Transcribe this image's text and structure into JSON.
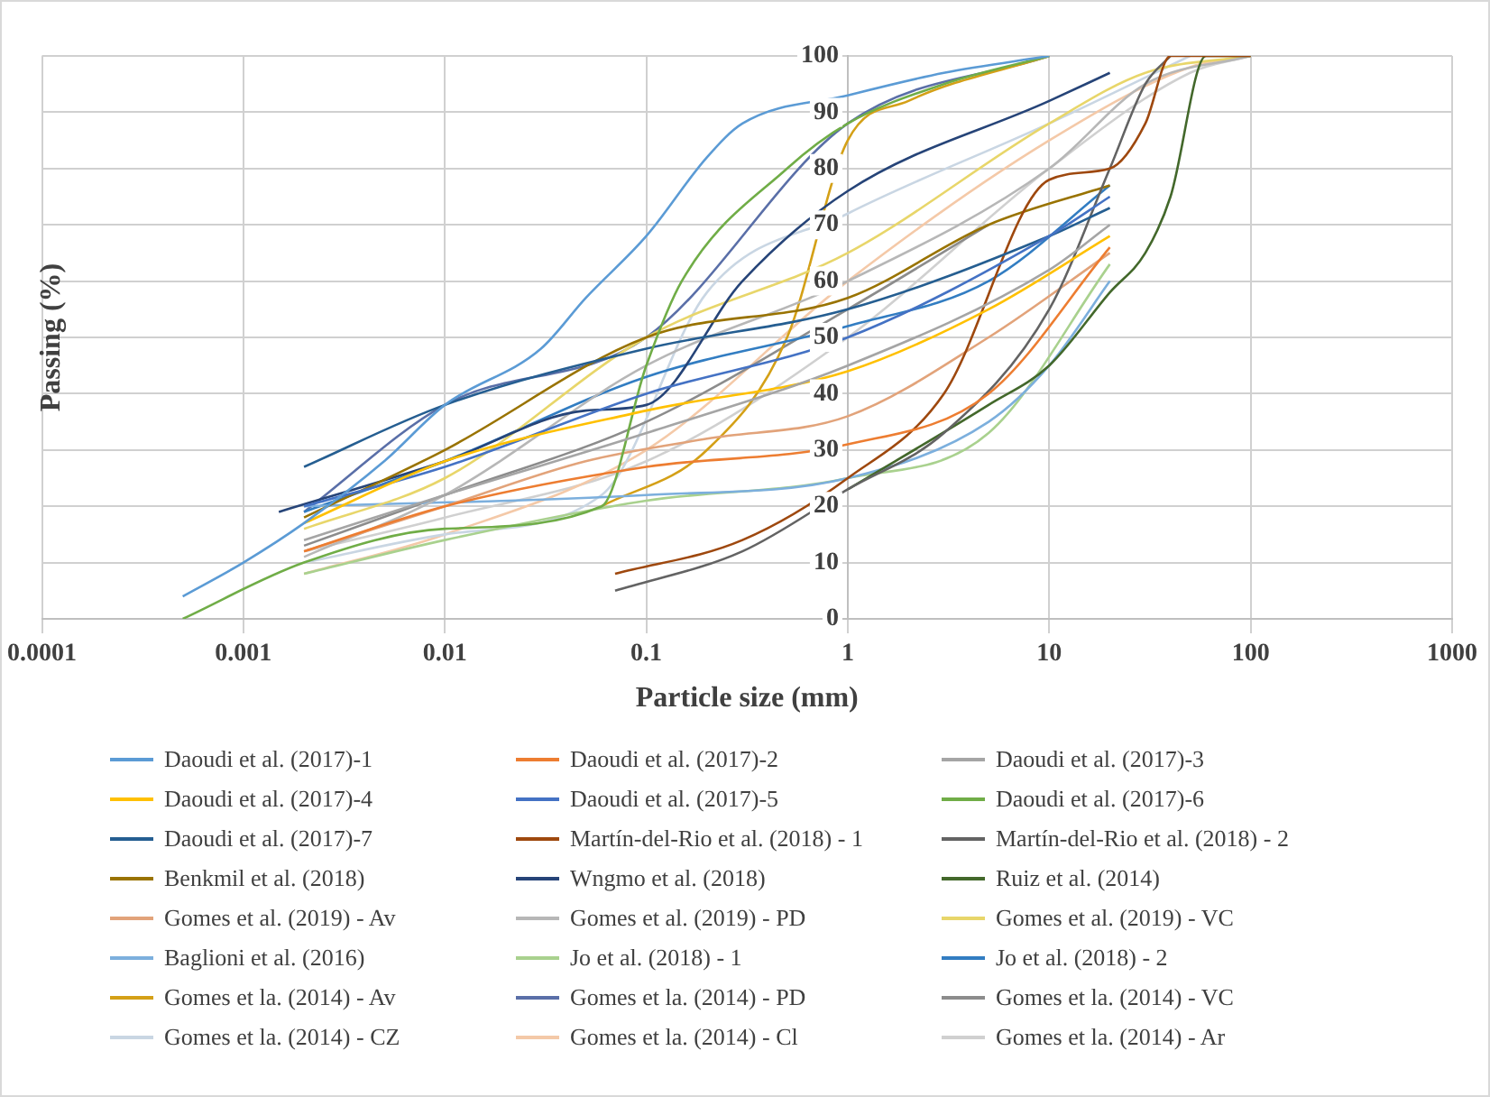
{
  "chart_data": {
    "type": "line",
    "xlabel": "Particle size (mm)",
    "ylabel": "Passing (%)",
    "log": "x",
    "xlim": [
      0.0001,
      1000
    ],
    "xticks": [
      0.0001,
      0.001,
      0.01,
      0.1,
      1,
      10,
      100,
      1000
    ],
    "ylim": [
      0,
      100
    ],
    "yticks": [
      0,
      10,
      20,
      30,
      40,
      50,
      60,
      70,
      80,
      90,
      100
    ],
    "grid": true,
    "legend": "bottom",
    "marker": "none",
    "line_style": "solid",
    "series": [
      {
        "name": "Daoudi et al. (2017)-1",
        "color": "#5b9bd5",
        "x": [
          0.0005,
          0.001,
          0.002,
          0.005,
          0.01,
          0.03,
          0.05,
          0.1,
          0.2,
          0.3,
          1,
          3,
          10
        ],
        "values": [
          4,
          10,
          17,
          28,
          38,
          48,
          57,
          68,
          82,
          88,
          93,
          97,
          100
        ]
      },
      {
        "name": "Daoudi et al. (2017)-2",
        "color": "#ed7d31",
        "x": [
          0.002,
          0.01,
          0.1,
          1,
          5,
          20
        ],
        "values": [
          12,
          20,
          27,
          31,
          40,
          66
        ]
      },
      {
        "name": "Daoudi et al. (2017)-3",
        "color": "#a5a5a5",
        "x": [
          0.002,
          0.01,
          0.1,
          1,
          10,
          20
        ],
        "values": [
          14,
          22,
          33,
          45,
          62,
          70
        ]
      },
      {
        "name": "Daoudi et al. (2017)-4",
        "color": "#ffc000",
        "x": [
          0.002,
          0.01,
          0.1,
          1,
          5,
          20
        ],
        "values": [
          17,
          28,
          37,
          44,
          55,
          68
        ]
      },
      {
        "name": "Daoudi et al. (2017)-5",
        "color": "#4472c4",
        "x": [
          0.002,
          0.01,
          0.1,
          1,
          10,
          20
        ],
        "values": [
          20,
          27,
          40,
          50,
          68,
          75
        ]
      },
      {
        "name": "Daoudi et al. (2017)-6",
        "color": "#70ad47",
        "x": [
          0.0005,
          0.002,
          0.01,
          0.06,
          0.1,
          0.15,
          0.5,
          1,
          3,
          10
        ],
        "values": [
          0,
          10,
          16,
          20,
          45,
          60,
          80,
          88,
          95,
          100
        ]
      },
      {
        "name": "Daoudi et al. (2017)-7",
        "color": "#255e91",
        "x": [
          0.002,
          0.01,
          0.1,
          1,
          10,
          20
        ],
        "values": [
          27,
          38,
          48,
          55,
          68,
          73
        ]
      },
      {
        "name": "Martín-del-Rio et al. (2018) - 1",
        "color": "#9e480e",
        "x": [
          0.07,
          0.3,
          1,
          3,
          10,
          20,
          30,
          40,
          100
        ],
        "values": [
          8,
          14,
          25,
          40,
          78,
          80,
          88,
          100,
          100
        ]
      },
      {
        "name": "Martín-del-Rio et al. (2018) - 2",
        "color": "#636363",
        "x": [
          0.07,
          0.3,
          1,
          3,
          10,
          20,
          30,
          40
        ],
        "values": [
          5,
          12,
          23,
          33,
          55,
          80,
          95,
          100
        ]
      },
      {
        "name": "Benkmil et al. (2018)",
        "color": "#997300",
        "x": [
          0.002,
          0.01,
          0.1,
          1,
          5,
          20
        ],
        "values": [
          18,
          30,
          50,
          57,
          70,
          77
        ]
      },
      {
        "name": "Wngmo et al.  (2018)",
        "color": "#264478",
        "x": [
          0.0015,
          0.01,
          0.05,
          0.1,
          0.3,
          1,
          10,
          20
        ],
        "values": [
          19,
          28,
          37,
          38,
          60,
          76,
          92,
          97
        ]
      },
      {
        "name": "Ruiz et al. (2014)",
        "color": "#43682b",
        "x": [
          1,
          5,
          10,
          20,
          30,
          40,
          60,
          100
        ],
        "values": [
          23,
          38,
          45,
          58,
          65,
          75,
          100,
          100
        ]
      },
      {
        "name": "Gomes et al. (2019) - Av",
        "color": "#e2a37a",
        "x": [
          0.002,
          0.01,
          0.05,
          0.2,
          1,
          5,
          20
        ],
        "values": [
          12,
          20,
          28,
          32,
          36,
          50,
          65
        ]
      },
      {
        "name": "Gomes et al. (2019) - PD",
        "color": "#b7b7b7",
        "x": [
          0.002,
          0.01,
          0.1,
          1,
          10,
          30,
          100
        ],
        "values": [
          11,
          22,
          45,
          60,
          80,
          95,
          100
        ]
      },
      {
        "name": "Gomes et al. (2019) - VC",
        "color": "#e8d66a",
        "x": [
          0.002,
          0.01,
          0.1,
          1,
          10,
          30,
          100
        ],
        "values": [
          16,
          25,
          50,
          65,
          88,
          97,
          100
        ]
      },
      {
        "name": "Baglioni et al. (2016)",
        "color": "#7cafdd",
        "x": [
          0.002,
          0.1,
          1,
          5,
          10,
          20
        ],
        "values": [
          20,
          22,
          25,
          35,
          45,
          60
        ]
      },
      {
        "name": "Jo et al. (2018) - 1",
        "color": "#a9d18e",
        "x": [
          0.002,
          0.01,
          0.1,
          1,
          5,
          20
        ],
        "values": [
          8,
          14,
          21,
          25,
          33,
          63
        ]
      },
      {
        "name": "Jo et al. (2018) - 2",
        "color": "#327dc2",
        "x": [
          0.002,
          0.01,
          0.1,
          1,
          5,
          20
        ],
        "values": [
          19,
          28,
          43,
          52,
          60,
          77
        ]
      },
      {
        "name": "Gomes et la. (2014) - Av",
        "color": "#d4a017",
        "x": [
          0.06,
          0.2,
          0.5,
          1,
          2,
          10
        ],
        "values": [
          20,
          30,
          50,
          85,
          92,
          100
        ]
      },
      {
        "name": "Gomes et la. (2014) - PD",
        "color": "#5a6fa8",
        "x": [
          0.002,
          0.01,
          0.1,
          1,
          10
        ],
        "values": [
          19,
          38,
          50,
          88,
          100
        ]
      },
      {
        "name": "Gomes et la. (2014) - VC",
        "color": "#8c8c8c",
        "x": [
          0.002,
          0.01,
          0.1,
          1,
          5
        ],
        "values": [
          13,
          22,
          35,
          55,
          70
        ]
      },
      {
        "name": "Gomes et la. (2014) - CZ",
        "color": "#c9d6e3",
        "x": [
          0.002,
          0.01,
          0.06,
          0.2,
          1,
          10,
          50
        ],
        "values": [
          10,
          15,
          22,
          58,
          72,
          88,
          100
        ]
      },
      {
        "name": "Gomes et la. (2014) - Cl",
        "color": "#f4c9a8",
        "x": [
          0.002,
          0.01,
          0.1,
          1,
          10,
          50,
          100
        ],
        "values": [
          8,
          15,
          30,
          60,
          85,
          98,
          100
        ]
      },
      {
        "name": "Gomes et la. (2014) - Ar",
        "color": "#d0d0d0",
        "x": [
          0.002,
          0.01,
          0.1,
          1,
          10,
          50,
          100
        ],
        "values": [
          12,
          18,
          28,
          50,
          80,
          97,
          100
        ]
      }
    ]
  }
}
